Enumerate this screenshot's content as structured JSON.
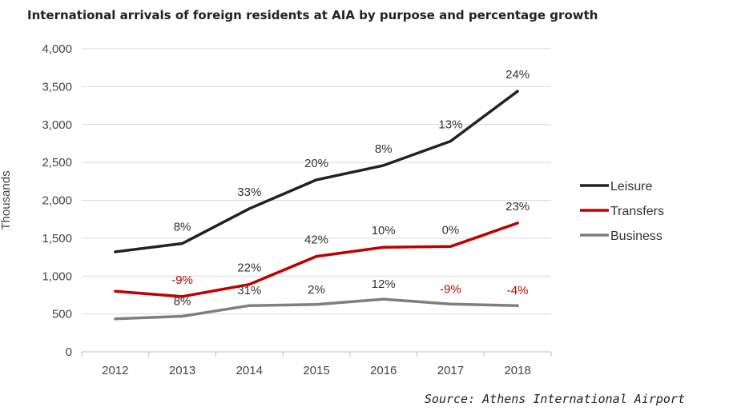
{
  "title": "International arrivals of foreign residents at AIA by purpose and percentage growth",
  "source": "Source: Athens International Airport",
  "chart_data": {
    "type": "line",
    "title": "International arrivals of foreign residents at AIA by purpose and percentage growth",
    "xlabel": "",
    "ylabel": "Thousands",
    "categories": [
      "2012",
      "2013",
      "2014",
      "2015",
      "2016",
      "2017",
      "2018"
    ],
    "ylim": [
      0,
      4000
    ],
    "yticks": [
      0,
      500,
      1000,
      1500,
      2000,
      2500,
      3000,
      3500,
      4000
    ],
    "ytick_labels": [
      "0",
      "500",
      "1,000",
      "1,500",
      "2,000",
      "2,500",
      "3,000",
      "3,500",
      "4,000"
    ],
    "grid": true,
    "legend_position": "right",
    "series": [
      {
        "name": "Leisure",
        "color": "#222222",
        "values": [
          1320,
          1430,
          1890,
          2270,
          2460,
          2780,
          3440
        ],
        "labels": [
          "",
          "8%",
          "33%",
          "20%",
          "8%",
          "13%",
          "24%"
        ],
        "label_color": "#333333"
      },
      {
        "name": "Transfers",
        "color": "#c00000",
        "values": [
          800,
          730,
          890,
          1260,
          1380,
          1390,
          1700
        ],
        "labels": [
          "",
          "-9%",
          "22%",
          "42%",
          "10%",
          "0%",
          "23%"
        ],
        "label_colors": [
          "#333333",
          "#c00000",
          "#333333",
          "#333333",
          "#333333",
          "#333333",
          "#333333"
        ]
      },
      {
        "name": "Business",
        "color": "#7f7f7f",
        "values": [
          435,
          470,
          610,
          625,
          695,
          630,
          610
        ],
        "labels": [
          "",
          "8%",
          "31%",
          "2%",
          "12%",
          "-9%",
          "-4%"
        ],
        "label_colors": [
          "#333333",
          "#333333",
          "#333333",
          "#333333",
          "#333333",
          "#c00000",
          "#c00000"
        ]
      }
    ]
  }
}
